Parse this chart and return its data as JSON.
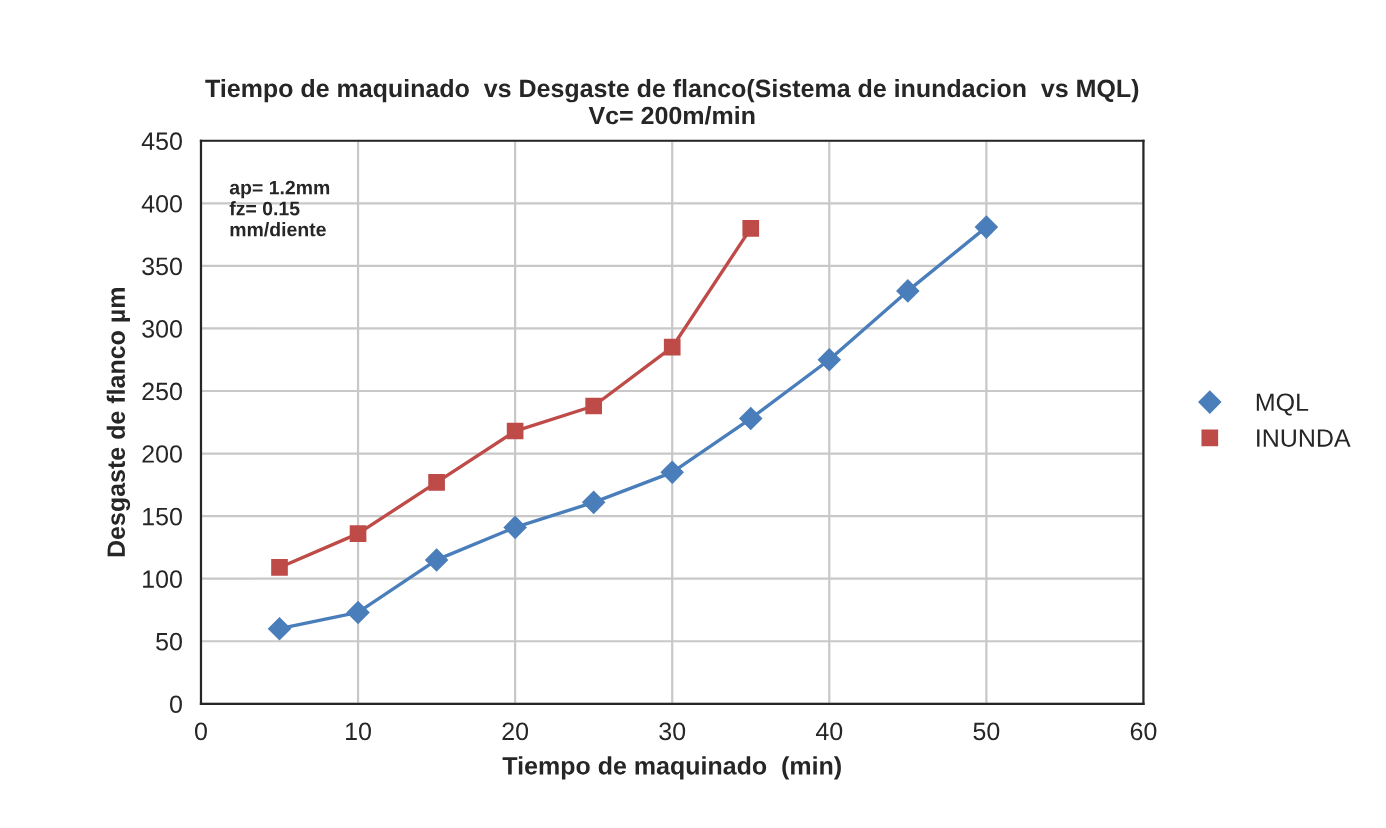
{
  "chart_data": {
    "type": "line",
    "title": "Tiempo de maquinado  vs Desgaste de flanco(Sistema de inundacion  vs MQL)\nVc= 200m/min",
    "xlabel": "Tiempo de maquinado  (min)",
    "ylabel": "Desgaste de flanco µm",
    "series": [
      {
        "name": "MQL",
        "color": "#4a7ebb",
        "x": [
          5,
          10,
          15,
          20,
          25,
          30,
          35,
          40,
          45,
          50
        ],
        "values": [
          60,
          73,
          115,
          141,
          161,
          185,
          228,
          275,
          330,
          381
        ],
        "marker": "diamond"
      },
      {
        "name": "INUNDA",
        "color": "#be4b48",
        "x": [
          5,
          10,
          15,
          20,
          25,
          30,
          35
        ],
        "values": [
          109,
          136,
          177,
          218,
          238,
          285,
          380
        ],
        "marker": "square"
      }
    ],
    "xlim": [
      0,
      60
    ],
    "xticks": [
      0,
      10,
      20,
      30,
      40,
      50,
      60
    ],
    "ylim": [
      0,
      450
    ],
    "yticks": [
      0,
      50,
      100,
      150,
      200,
      250,
      300,
      350,
      400,
      450
    ],
    "grid": true,
    "legend": "right",
    "line_style": "solid",
    "annotations": [
      "ap= 1.2mm\nfz= 0.15\nmm/diente"
    ]
  }
}
